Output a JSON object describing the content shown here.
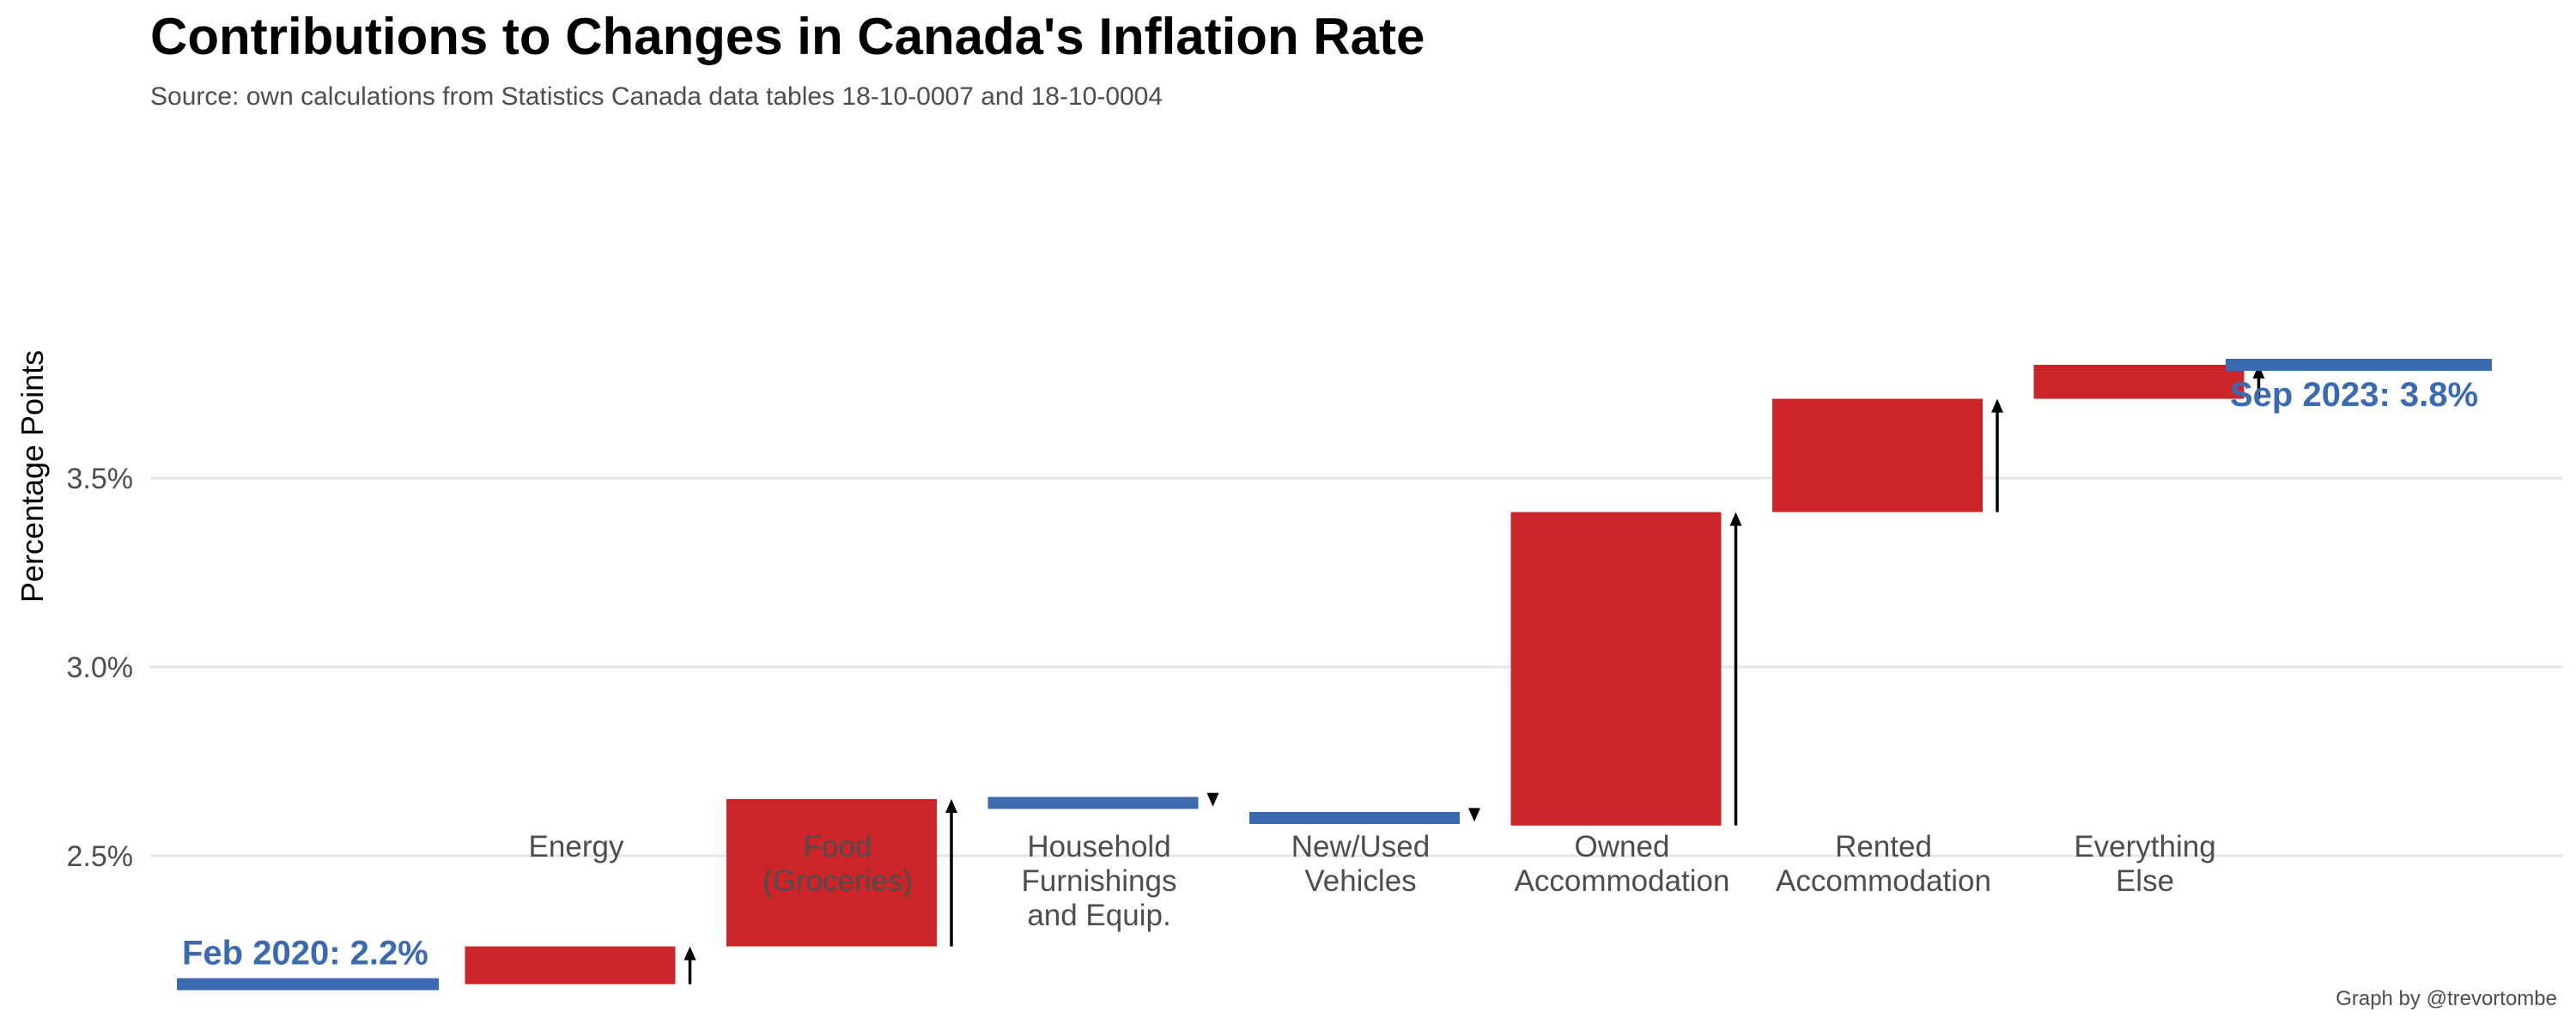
{
  "chart_data": {
    "type": "bar",
    "subtype": "waterfall",
    "title": "Contributions to Changes in Canada's Inflation Rate",
    "subtitle": "Source: own calculations from Statistics Canada data tables 18-10-0007 and 18-10-0004",
    "caption": "Graph by @trevortombe",
    "xlabel": "",
    "ylabel": "Percentage Points",
    "ylim": [
      2.05,
      3.95
    ],
    "yticks": [
      2.5,
      3.0,
      3.5
    ],
    "ytick_labels": [
      "2.5%",
      "3.0%",
      "3.5%"
    ],
    "grid": "horizontal",
    "start": {
      "label": "Feb 2020: 2.2%",
      "value": 2.16
    },
    "end": {
      "label": "Sep 2023: 3.8%",
      "value": 3.8
    },
    "steps": [
      {
        "category": [
          "Energy"
        ],
        "from": 2.16,
        "to": 2.26
      },
      {
        "category": [
          "Food",
          "(Groceries)"
        ],
        "from": 2.26,
        "to": 2.65
      },
      {
        "category": [
          "Household",
          "Furnishings",
          "and Equip."
        ],
        "from": 2.65,
        "to": 2.63
      },
      {
        "category": [
          "New/Used",
          "Vehicles"
        ],
        "from": 2.61,
        "to": 2.59
      },
      {
        "category": [
          "Owned",
          "Accommodation"
        ],
        "from": 2.58,
        "to": 3.41
      },
      {
        "category": [
          "Rented",
          "Accommodation"
        ],
        "from": 3.41,
        "to": 3.71
      },
      {
        "category": [
          "Everything",
          "Else"
        ],
        "from": 3.71,
        "to": 3.8
      }
    ],
    "colors": {
      "increase": "#cc2529",
      "decrease": "#3c6ab0",
      "endpoint": "#3c6ab0",
      "arrow": "#000000",
      "grid": "#e6e6e6"
    }
  }
}
